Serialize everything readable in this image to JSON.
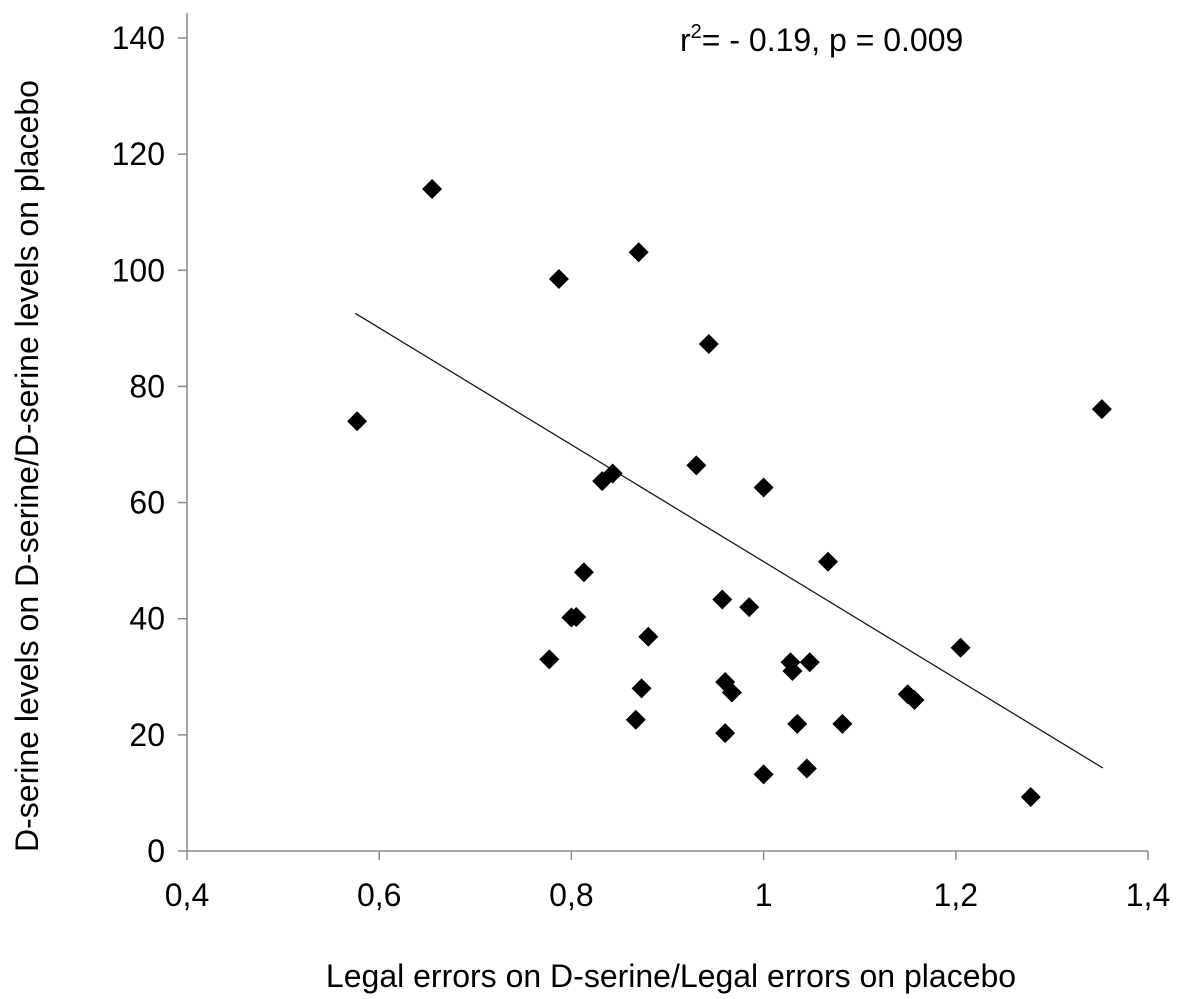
{
  "chart_data": {
    "type": "scatter",
    "title": "",
    "xlabel": "Legal errors on D-serine/Legal errors on placebo",
    "ylabel": "D-serine levels on D-serine/D-serine levels on placebo",
    "xlim": [
      0.4,
      1.4
    ],
    "ylim": [
      0,
      140
    ],
    "x_ticks": [
      0.4,
      0.6,
      0.8,
      1.0,
      1.2,
      1.4
    ],
    "x_tick_labels": [
      "0,4",
      "0,6",
      "0,8",
      "1",
      "1,2",
      "1,4"
    ],
    "y_ticks": [
      0,
      20,
      40,
      60,
      80,
      100,
      120,
      140
    ],
    "y_tick_labels": [
      "0",
      "20",
      "40",
      "60",
      "80",
      "100",
      "120",
      "140"
    ],
    "grid": false,
    "legend": "none",
    "marker": "diamond",
    "marker_color": "#000000",
    "annotation": {
      "prefix": "r",
      "superscript": "2",
      "suffix": "= - 0.19, p = 0.009"
    },
    "trendline": {
      "x": [
        0.575,
        1.353
      ],
      "y": [
        92.6,
        14.3
      ]
    },
    "points": [
      {
        "x": 0.655,
        "y": 114.0
      },
      {
        "x": 0.87,
        "y": 103.1
      },
      {
        "x": 0.787,
        "y": 98.5
      },
      {
        "x": 0.943,
        "y": 87.3
      },
      {
        "x": 0.577,
        "y": 74.0
      },
      {
        "x": 1.352,
        "y": 76.1
      },
      {
        "x": 0.93,
        "y": 66.4
      },
      {
        "x": 0.843,
        "y": 65.0
      },
      {
        "x": 0.832,
        "y": 63.7
      },
      {
        "x": 1.0,
        "y": 62.6
      },
      {
        "x": 1.067,
        "y": 49.8
      },
      {
        "x": 0.813,
        "y": 48.0
      },
      {
        "x": 0.957,
        "y": 43.3
      },
      {
        "x": 0.985,
        "y": 42.0
      },
      {
        "x": 0.8,
        "y": 40.2
      },
      {
        "x": 0.805,
        "y": 40.3
      },
      {
        "x": 0.88,
        "y": 36.9
      },
      {
        "x": 1.205,
        "y": 35.0
      },
      {
        "x": 0.777,
        "y": 33.0
      },
      {
        "x": 1.028,
        "y": 32.5
      },
      {
        "x": 1.048,
        "y": 32.5
      },
      {
        "x": 1.03,
        "y": 31.0
      },
      {
        "x": 0.96,
        "y": 29.1
      },
      {
        "x": 0.873,
        "y": 28.0
      },
      {
        "x": 0.967,
        "y": 27.3
      },
      {
        "x": 1.15,
        "y": 27.0
      },
      {
        "x": 1.157,
        "y": 26.0
      },
      {
        "x": 0.867,
        "y": 22.6
      },
      {
        "x": 1.035,
        "y": 21.9
      },
      {
        "x": 1.082,
        "y": 21.9
      },
      {
        "x": 0.96,
        "y": 20.3
      },
      {
        "x": 1.045,
        "y": 14.2
      },
      {
        "x": 1.0,
        "y": 13.2
      },
      {
        "x": 1.278,
        "y": 9.3
      }
    ]
  }
}
